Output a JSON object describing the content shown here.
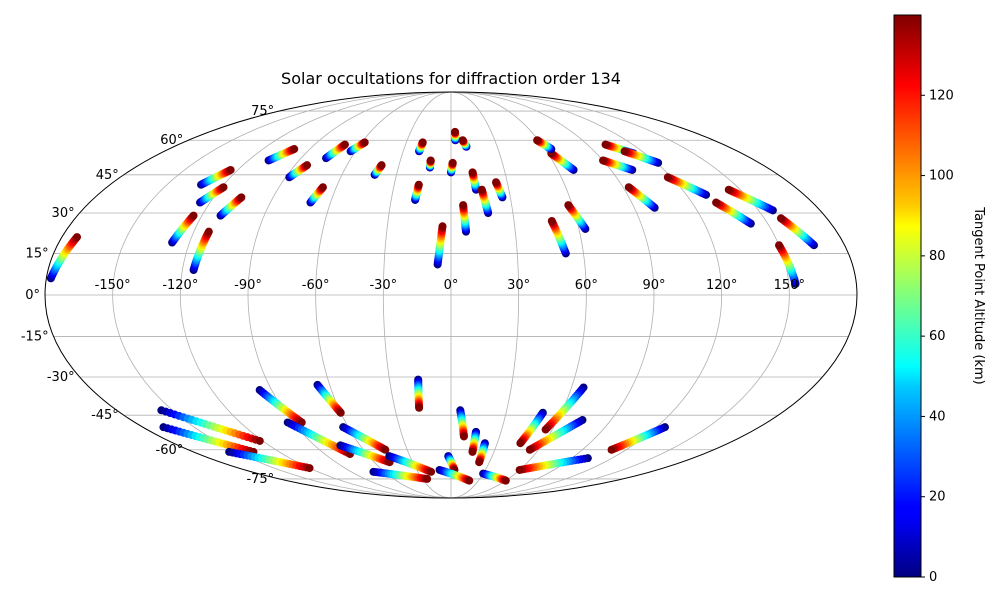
{
  "chart_data": {
    "type": "scatter",
    "projection": "mollweide",
    "title": "Solar occultations for diffraction order 134",
    "grid": true,
    "longitude_ticks": [
      "-150°",
      "-120°",
      "-90°",
      "-60°",
      "-30°",
      "0°",
      "30°",
      "60°",
      "90°",
      "120°",
      "150°"
    ],
    "latitude_ticks": [
      "-75°",
      "-60°",
      "-45°",
      "-30°",
      "-15°",
      "0°",
      "15°",
      "30°",
      "45°",
      "60°",
      "75°"
    ],
    "colorbar": {
      "label": "Tangent Point Altitude (km)",
      "colormap": "jet",
      "range": [
        0,
        140
      ],
      "ticks": [
        "0",
        "20",
        "40",
        "60",
        "80",
        "100",
        "120"
      ]
    },
    "tracks": [
      {
        "lon": [
          -178,
          -173
        ],
        "lat": [
          6,
          21
        ]
      },
      {
        "lon": [
          -132,
          -124
        ],
        "lat": [
          41,
          47
        ]
      },
      {
        "lon": [
          -108,
          -100
        ],
        "lat": [
          51,
          56
        ]
      },
      {
        "lon": [
          -88,
          -83
        ],
        "lat": [
          44,
          49
        ]
      },
      {
        "lon": [
          -75,
          -70
        ],
        "lat": [
          52,
          58
        ]
      },
      {
        "lon": [
          -63,
          -58
        ],
        "lat": [
          55,
          59
        ]
      },
      {
        "lon": [
          -125,
          -119
        ],
        "lat": [
          34,
          40
        ]
      },
      {
        "lon": [
          -111,
          -106
        ],
        "lat": [
          29,
          36
        ]
      },
      {
        "lon": [
          -128,
          -124
        ],
        "lat": [
          19,
          29
        ]
      },
      {
        "lon": [
          -115,
          -113
        ],
        "lat": [
          9,
          23
        ]
      },
      {
        "lon": [
          -70,
          -67
        ],
        "lat": [
          34,
          40
        ]
      },
      {
        "lon": [
          -42,
          -40
        ],
        "lat": [
          45,
          49
        ]
      },
      {
        "lon": [
          -20,
          -19
        ],
        "lat": [
          55,
          59
        ]
      },
      {
        "lon": [
          -12,
          -12
        ],
        "lat": [
          48,
          51
        ]
      },
      {
        "lon": [
          -18,
          -17
        ],
        "lat": [
          35,
          41
        ]
      },
      {
        "lon": [
          0,
          1
        ],
        "lat": [
          46,
          50
        ]
      },
      {
        "lon": [
          3,
          3
        ],
        "lat": [
          60,
          64
        ]
      },
      {
        "lon": [
          10,
          8
        ],
        "lat": [
          57,
          60
        ]
      },
      {
        "lon": [
          13,
          12
        ],
        "lat": [
          39,
          46
        ]
      },
      {
        "lon": [
          18,
          16
        ],
        "lat": [
          30,
          39
        ]
      },
      {
        "lon": [
          26,
          24
        ],
        "lat": [
          36,
          42
        ]
      },
      {
        "lon": [
          7,
          6
        ],
        "lat": [
          23,
          33
        ]
      },
      {
        "lon": [
          -6,
          -4
        ],
        "lat": [
          11,
          25
        ]
      },
      {
        "lon": [
          52,
          48
        ],
        "lat": [
          15,
          27
        ]
      },
      {
        "lon": [
          63,
          58
        ],
        "lat": [
          24,
          33
        ]
      },
      {
        "lon": [
          69,
          62
        ],
        "lat": [
          47,
          54
        ]
      },
      {
        "lon": [
          64,
          59
        ],
        "lat": [
          56,
          60
        ]
      },
      {
        "lon": [
          102,
          90
        ],
        "lat": [
          47,
          51
        ]
      },
      {
        "lon": [
          113,
          102
        ],
        "lat": [
          54,
          58
        ]
      },
      {
        "lon": [
          121,
          109
        ],
        "lat": [
          50,
          55
        ]
      },
      {
        "lon": [
          100,
          93
        ],
        "lat": [
          32,
          40
        ]
      },
      {
        "lon": [
          130,
          118
        ],
        "lat": [
          37,
          44
        ]
      },
      {
        "lon": [
          157,
          144
        ],
        "lat": [
          31,
          39
        ]
      },
      {
        "lon": [
          142,
          132
        ],
        "lat": [
          26,
          34
        ]
      },
      {
        "lon": [
          166,
          158
        ],
        "lat": [
          18,
          28
        ]
      },
      {
        "lon": [
          153,
          150
        ],
        "lat": [
          4,
          18
        ]
      },
      {
        "lon": [
          -156,
          -122
        ],
        "lat": [
          -43,
          -56
        ]
      },
      {
        "lon": [
          -168,
          -138
        ],
        "lat": [
          -50,
          -61
        ]
      },
      {
        "lon": [
          -155,
          -120
        ],
        "lat": [
          -61,
          -69
        ]
      },
      {
        "lon": [
          -96,
          -85
        ],
        "lat": [
          -35,
          -48
        ]
      },
      {
        "lon": [
          -93,
          -72
        ],
        "lat": [
          -48,
          -62
        ]
      },
      {
        "lon": [
          -66,
          -60
        ],
        "lat": [
          -33,
          -44
        ]
      },
      {
        "lon": [
          -63,
          -45
        ],
        "lat": [
          -50,
          -60
        ]
      },
      {
        "lon": [
          -73,
          -48
        ],
        "lat": [
          -58,
          -66
        ]
      },
      {
        "lon": [
          -16,
          -17
        ],
        "lat": [
          -31,
          -42
        ]
      },
      {
        "lon": [
          -45,
          -18
        ],
        "lat": [
          -63,
          -71
        ]
      },
      {
        "lon": [
          -70,
          -25
        ],
        "lat": [
          -71,
          -75
        ]
      },
      {
        "lon": [
          5,
          8
        ],
        "lat": [
          -43,
          -54
        ]
      },
      {
        "lon": [
          -2,
          3
        ],
        "lat": [
          -63,
          -70
        ]
      },
      {
        "lon": [
          15,
          15
        ],
        "lat": [
          -52,
          -61
        ]
      },
      {
        "lon": [
          22,
          22
        ],
        "lat": [
          -57,
          -66
        ]
      },
      {
        "lon": [
          -10,
          20
        ],
        "lat": [
          -70,
          -76
        ]
      },
      {
        "lon": [
          30,
          60
        ],
        "lat": [
          -72,
          -76
        ]
      },
      {
        "lon": [
          50,
          45
        ],
        "lat": [
          -44,
          -57
        ]
      },
      {
        "lon": [
          66,
          56
        ],
        "lat": [
          -34,
          -51
        ]
      },
      {
        "lon": [
          74,
          54
        ],
        "lat": [
          -47,
          -60
        ]
      },
      {
        "lon": [
          102,
          60
        ],
        "lat": [
          -64,
          -70
        ]
      },
      {
        "lon": [
          125,
          110
        ],
        "lat": [
          -50,
          -60
        ]
      }
    ]
  }
}
